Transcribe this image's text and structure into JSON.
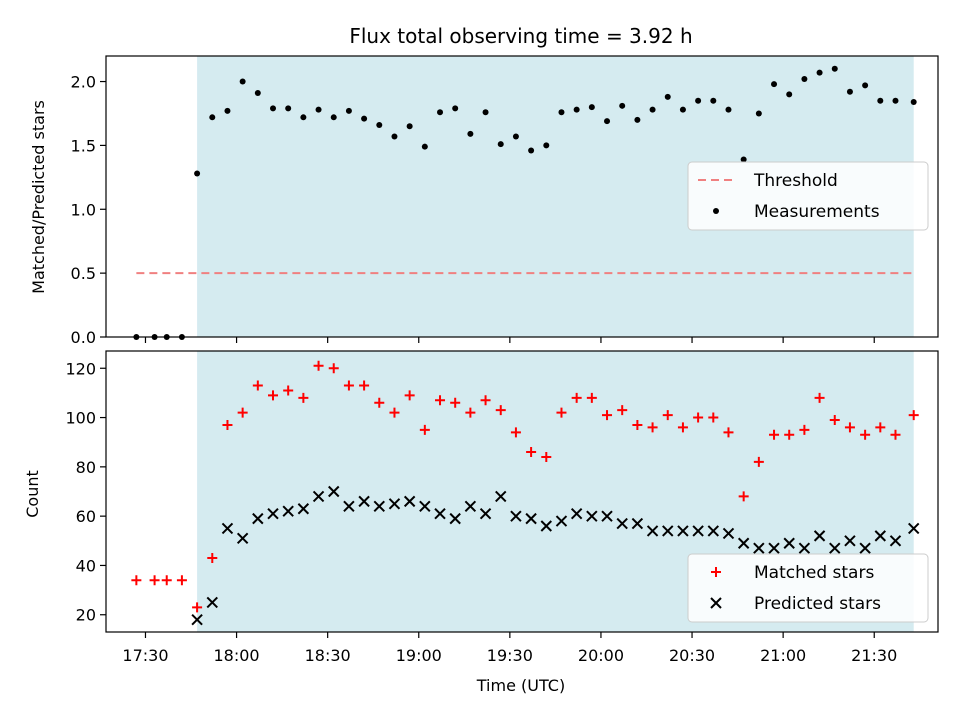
{
  "chart_data": {
    "title": "Flux total observing time = 3.92 h",
    "xlabel": "Time (UTC)",
    "x_axis": {
      "type": "time",
      "range": [
        "17:17",
        "21:51"
      ],
      "ticks": [
        "17:30",
        "18:00",
        "18:30",
        "19:00",
        "19:30",
        "20:00",
        "20:30",
        "21:00",
        "21:30"
      ]
    },
    "observing_span": [
      "17:47",
      "21:43"
    ],
    "observing_span_color": "#d5ebf0",
    "panels": [
      {
        "type": "scatter",
        "ylabel": "Matched/Predicted stars",
        "ylim": [
          0,
          2.2
        ],
        "yticks": [
          "0.0",
          "0.5",
          "1.0",
          "1.5",
          "2.0"
        ],
        "legend_position": "center-right",
        "series": [
          {
            "name": "Threshold",
            "kind": "line",
            "style": "dashed",
            "color": "#f08080",
            "x": [
              "17:27",
              "21:43"
            ],
            "values": [
              0.5,
              0.5
            ]
          },
          {
            "name": "Measurements",
            "kind": "scatter",
            "marker": "dot",
            "color": "#000000",
            "x": [
              "17:27",
              "17:33",
              "17:37",
              "17:42",
              "17:47",
              "17:52",
              "17:57",
              "18:02",
              "18:07",
              "18:12",
              "18:17",
              "18:22",
              "18:27",
              "18:32",
              "18:37",
              "18:42",
              "18:47",
              "18:52",
              "18:57",
              "19:02",
              "19:07",
              "19:12",
              "19:17",
              "19:22",
              "19:27",
              "19:32",
              "19:37",
              "19:42",
              "19:47",
              "19:52",
              "19:57",
              "20:02",
              "20:07",
              "20:12",
              "20:17",
              "20:22",
              "20:27",
              "20:32",
              "20:37",
              "20:42",
              "20:47",
              "20:52",
              "20:57",
              "21:02",
              "21:07",
              "21:12",
              "21:17",
              "21:22",
              "21:27",
              "21:32",
              "21:37",
              "21:43"
            ],
            "values": [
              0.0,
              0.0,
              0.0,
              0.0,
              1.28,
              1.72,
              1.77,
              2.0,
              1.91,
              1.79,
              1.79,
              1.72,
              1.78,
              1.72,
              1.77,
              1.71,
              1.66,
              1.57,
              1.65,
              1.49,
              1.76,
              1.79,
              1.59,
              1.76,
              1.51,
              1.57,
              1.46,
              1.5,
              1.76,
              1.78,
              1.8,
              1.69,
              1.81,
              1.7,
              1.78,
              1.88,
              1.78,
              1.85,
              1.85,
              1.78,
              1.39,
              1.75,
              1.98,
              1.9,
              2.02,
              2.07,
              2.1,
              1.92,
              1.97,
              1.85,
              1.85,
              1.84
            ]
          }
        ]
      },
      {
        "type": "scatter",
        "ylabel": "Count",
        "ylim": [
          13,
          127
        ],
        "yticks": [
          "20",
          "40",
          "60",
          "80",
          "100",
          "120"
        ],
        "legend_position": "bottom-right",
        "series": [
          {
            "name": "Matched stars",
            "kind": "scatter",
            "marker": "plus",
            "color": "#ff0000",
            "x": [
              "17:27",
              "17:33",
              "17:37",
              "17:42",
              "17:47",
              "17:52",
              "17:57",
              "18:02",
              "18:07",
              "18:12",
              "18:17",
              "18:22",
              "18:27",
              "18:32",
              "18:37",
              "18:42",
              "18:47",
              "18:52",
              "18:57",
              "19:02",
              "19:07",
              "19:12",
              "19:17",
              "19:22",
              "19:27",
              "19:32",
              "19:37",
              "19:42",
              "19:47",
              "19:52",
              "19:57",
              "20:02",
              "20:07",
              "20:12",
              "20:17",
              "20:22",
              "20:27",
              "20:32",
              "20:37",
              "20:42",
              "20:47",
              "20:52",
              "20:57",
              "21:02",
              "21:07",
              "21:12",
              "21:17",
              "21:22",
              "21:27",
              "21:32",
              "21:37",
              "21:43"
            ],
            "values": [
              34,
              34,
              34,
              34,
              23,
              43,
              97,
              102,
              113,
              109,
              111,
              108,
              121,
              120,
              113,
              113,
              106,
              102,
              109,
              95,
              107,
              106,
              102,
              107,
              103,
              94,
              86,
              84,
              102,
              108,
              108,
              101,
              103,
              97,
              96,
              101,
              96,
              100,
              100,
              94,
              68,
              82,
              93,
              93,
              95,
              108,
              99,
              96,
              93,
              96,
              93,
              101
            ]
          },
          {
            "name": "Predicted stars",
            "kind": "scatter",
            "marker": "x",
            "color": "#000000",
            "x": [
              "17:47",
              "17:52",
              "17:57",
              "18:02",
              "18:07",
              "18:12",
              "18:17",
              "18:22",
              "18:27",
              "18:32",
              "18:37",
              "18:42",
              "18:47",
              "18:52",
              "18:57",
              "19:02",
              "19:07",
              "19:12",
              "19:17",
              "19:22",
              "19:27",
              "19:32",
              "19:37",
              "19:42",
              "19:47",
              "19:52",
              "19:57",
              "20:02",
              "20:07",
              "20:12",
              "20:17",
              "20:22",
              "20:27",
              "20:32",
              "20:37",
              "20:42",
              "20:47",
              "20:52",
              "20:57",
              "21:02",
              "21:07",
              "21:12",
              "21:17",
              "21:22",
              "21:27",
              "21:32",
              "21:37",
              "21:43"
            ],
            "values": [
              18,
              25,
              55,
              51,
              59,
              61,
              62,
              63,
              68,
              70,
              64,
              66,
              64,
              65,
              66,
              64,
              61,
              59,
              64,
              61,
              68,
              60,
              59,
              56,
              58,
              61,
              60,
              60,
              57,
              57,
              54,
              54,
              54,
              54,
              54,
              53,
              49,
              47,
              47,
              49,
              47,
              52,
              47,
              50,
              47,
              52,
              50,
              55
            ]
          }
        ]
      }
    ]
  }
}
